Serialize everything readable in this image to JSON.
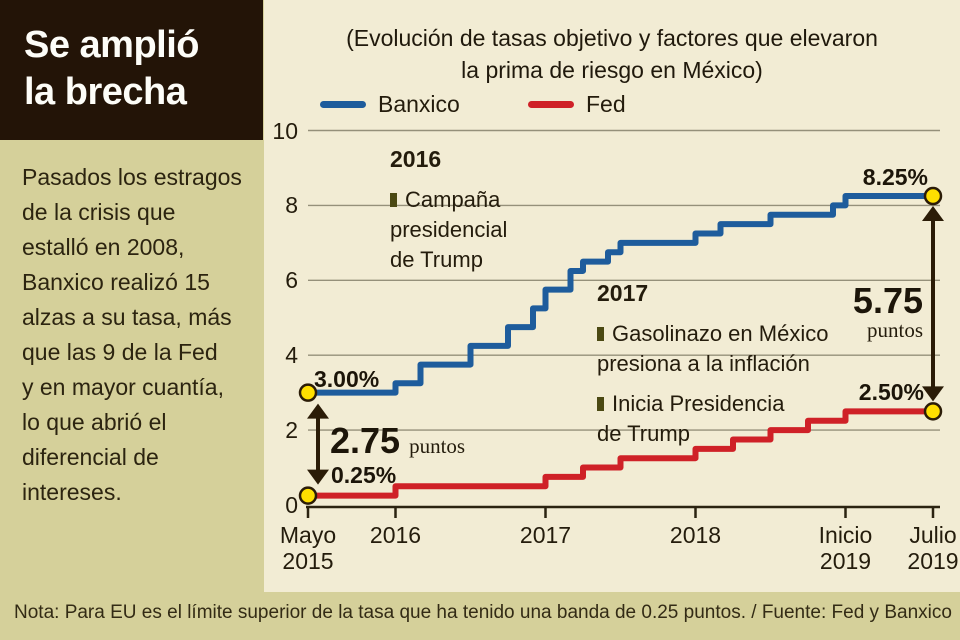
{
  "sidebar": {
    "title_lines": [
      "Se amplió",
      "la brecha"
    ],
    "body_lines": [
      "Pasados los estragos",
      "de la crisis que",
      "estalló en 2008,",
      "Banxico realizó 15",
      "alzas a su tasa, más",
      "que las 9 de la Fed",
      "y en mayor cuantía,",
      "lo que abrió el",
      "diferencial de",
      "intereses."
    ]
  },
  "note": "Nota: Para EU es el límite superior de la tasa que ha tenido una banda de 0.25 puntos. / Fuente: Fed y Banxico",
  "chart_data": {
    "type": "line",
    "subtype": "step",
    "title_lines": [
      "(Evolución de tasas objetivo y factores que elevaron",
      "la prima de riesgo en México)"
    ],
    "title": "(Evolución de tasas objetivo y factores que elevaron la prima de riesgo en México)",
    "x_unit": "months since Mayo 2015",
    "xlim": [
      0,
      50
    ],
    "ylim": [
      0,
      10
    ],
    "grid": true,
    "legend_position": "top-left",
    "yticks": [
      0,
      2,
      4,
      6,
      8,
      10
    ],
    "xticks": [
      {
        "m": 0,
        "lines": [
          "Mayo",
          "2015"
        ]
      },
      {
        "m": 7,
        "lines": [
          "2016"
        ]
      },
      {
        "m": 19,
        "lines": [
          "2017"
        ]
      },
      {
        "m": 31,
        "lines": [
          "2018"
        ]
      },
      {
        "m": 43,
        "lines": [
          "Inicio",
          "2019"
        ]
      },
      {
        "m": 50,
        "lines": [
          "Julio",
          "2019"
        ]
      }
    ],
    "series": [
      {
        "name": "Banxico",
        "color": "#1e5c9c",
        "start_label": "3.00%",
        "end_label": "8.25%",
        "end_month": 50,
        "points": [
          [
            0,
            3.0
          ],
          [
            7,
            3.25
          ],
          [
            9,
            3.75
          ],
          [
            13,
            4.25
          ],
          [
            16,
            4.75
          ],
          [
            18,
            5.25
          ],
          [
            19,
            5.75
          ],
          [
            21,
            6.25
          ],
          [
            22,
            6.5
          ],
          [
            24,
            6.75
          ],
          [
            25,
            7.0
          ],
          [
            31,
            7.25
          ],
          [
            33,
            7.5
          ],
          [
            37,
            7.75
          ],
          [
            42,
            8.0
          ],
          [
            43,
            8.25
          ]
        ]
      },
      {
        "name": "Fed",
        "color": "#cf2127",
        "start_label": "0.25%",
        "end_label": "2.50%",
        "end_month": 50,
        "points": [
          [
            0,
            0.25
          ],
          [
            7,
            0.5
          ],
          [
            19,
            0.75
          ],
          [
            22,
            1.0
          ],
          [
            25,
            1.25
          ],
          [
            31,
            1.5
          ],
          [
            34,
            1.75
          ],
          [
            37,
            2.0
          ],
          [
            40,
            2.25
          ],
          [
            43,
            2.5
          ]
        ]
      }
    ],
    "gap_annotations": [
      {
        "at": "start",
        "value": "2.75",
        "unit": "puntos"
      },
      {
        "at": "end",
        "value": "5.75",
        "unit": "puntos"
      }
    ],
    "event_annotations": [
      {
        "year": "2016",
        "items": [
          [
            "Campaña",
            "presidencial",
            "de Trump"
          ]
        ]
      },
      {
        "year": "2017",
        "items": [
          [
            "Gasolinazo en México",
            "presiona a la inflación"
          ],
          [
            "Inicia Presidencia",
            "de Trump"
          ]
        ]
      }
    ],
    "colors": {
      "dot_fill": "#ffdf00",
      "dot_stroke": "#2b1c07",
      "arrow": "#2b1c07",
      "grid": "#95907a",
      "axis": "#2b2310",
      "panel_bg": "#f2ecd4",
      "sidebar_bg": "#d5d09a",
      "headline_bg": "#231407"
    }
  }
}
